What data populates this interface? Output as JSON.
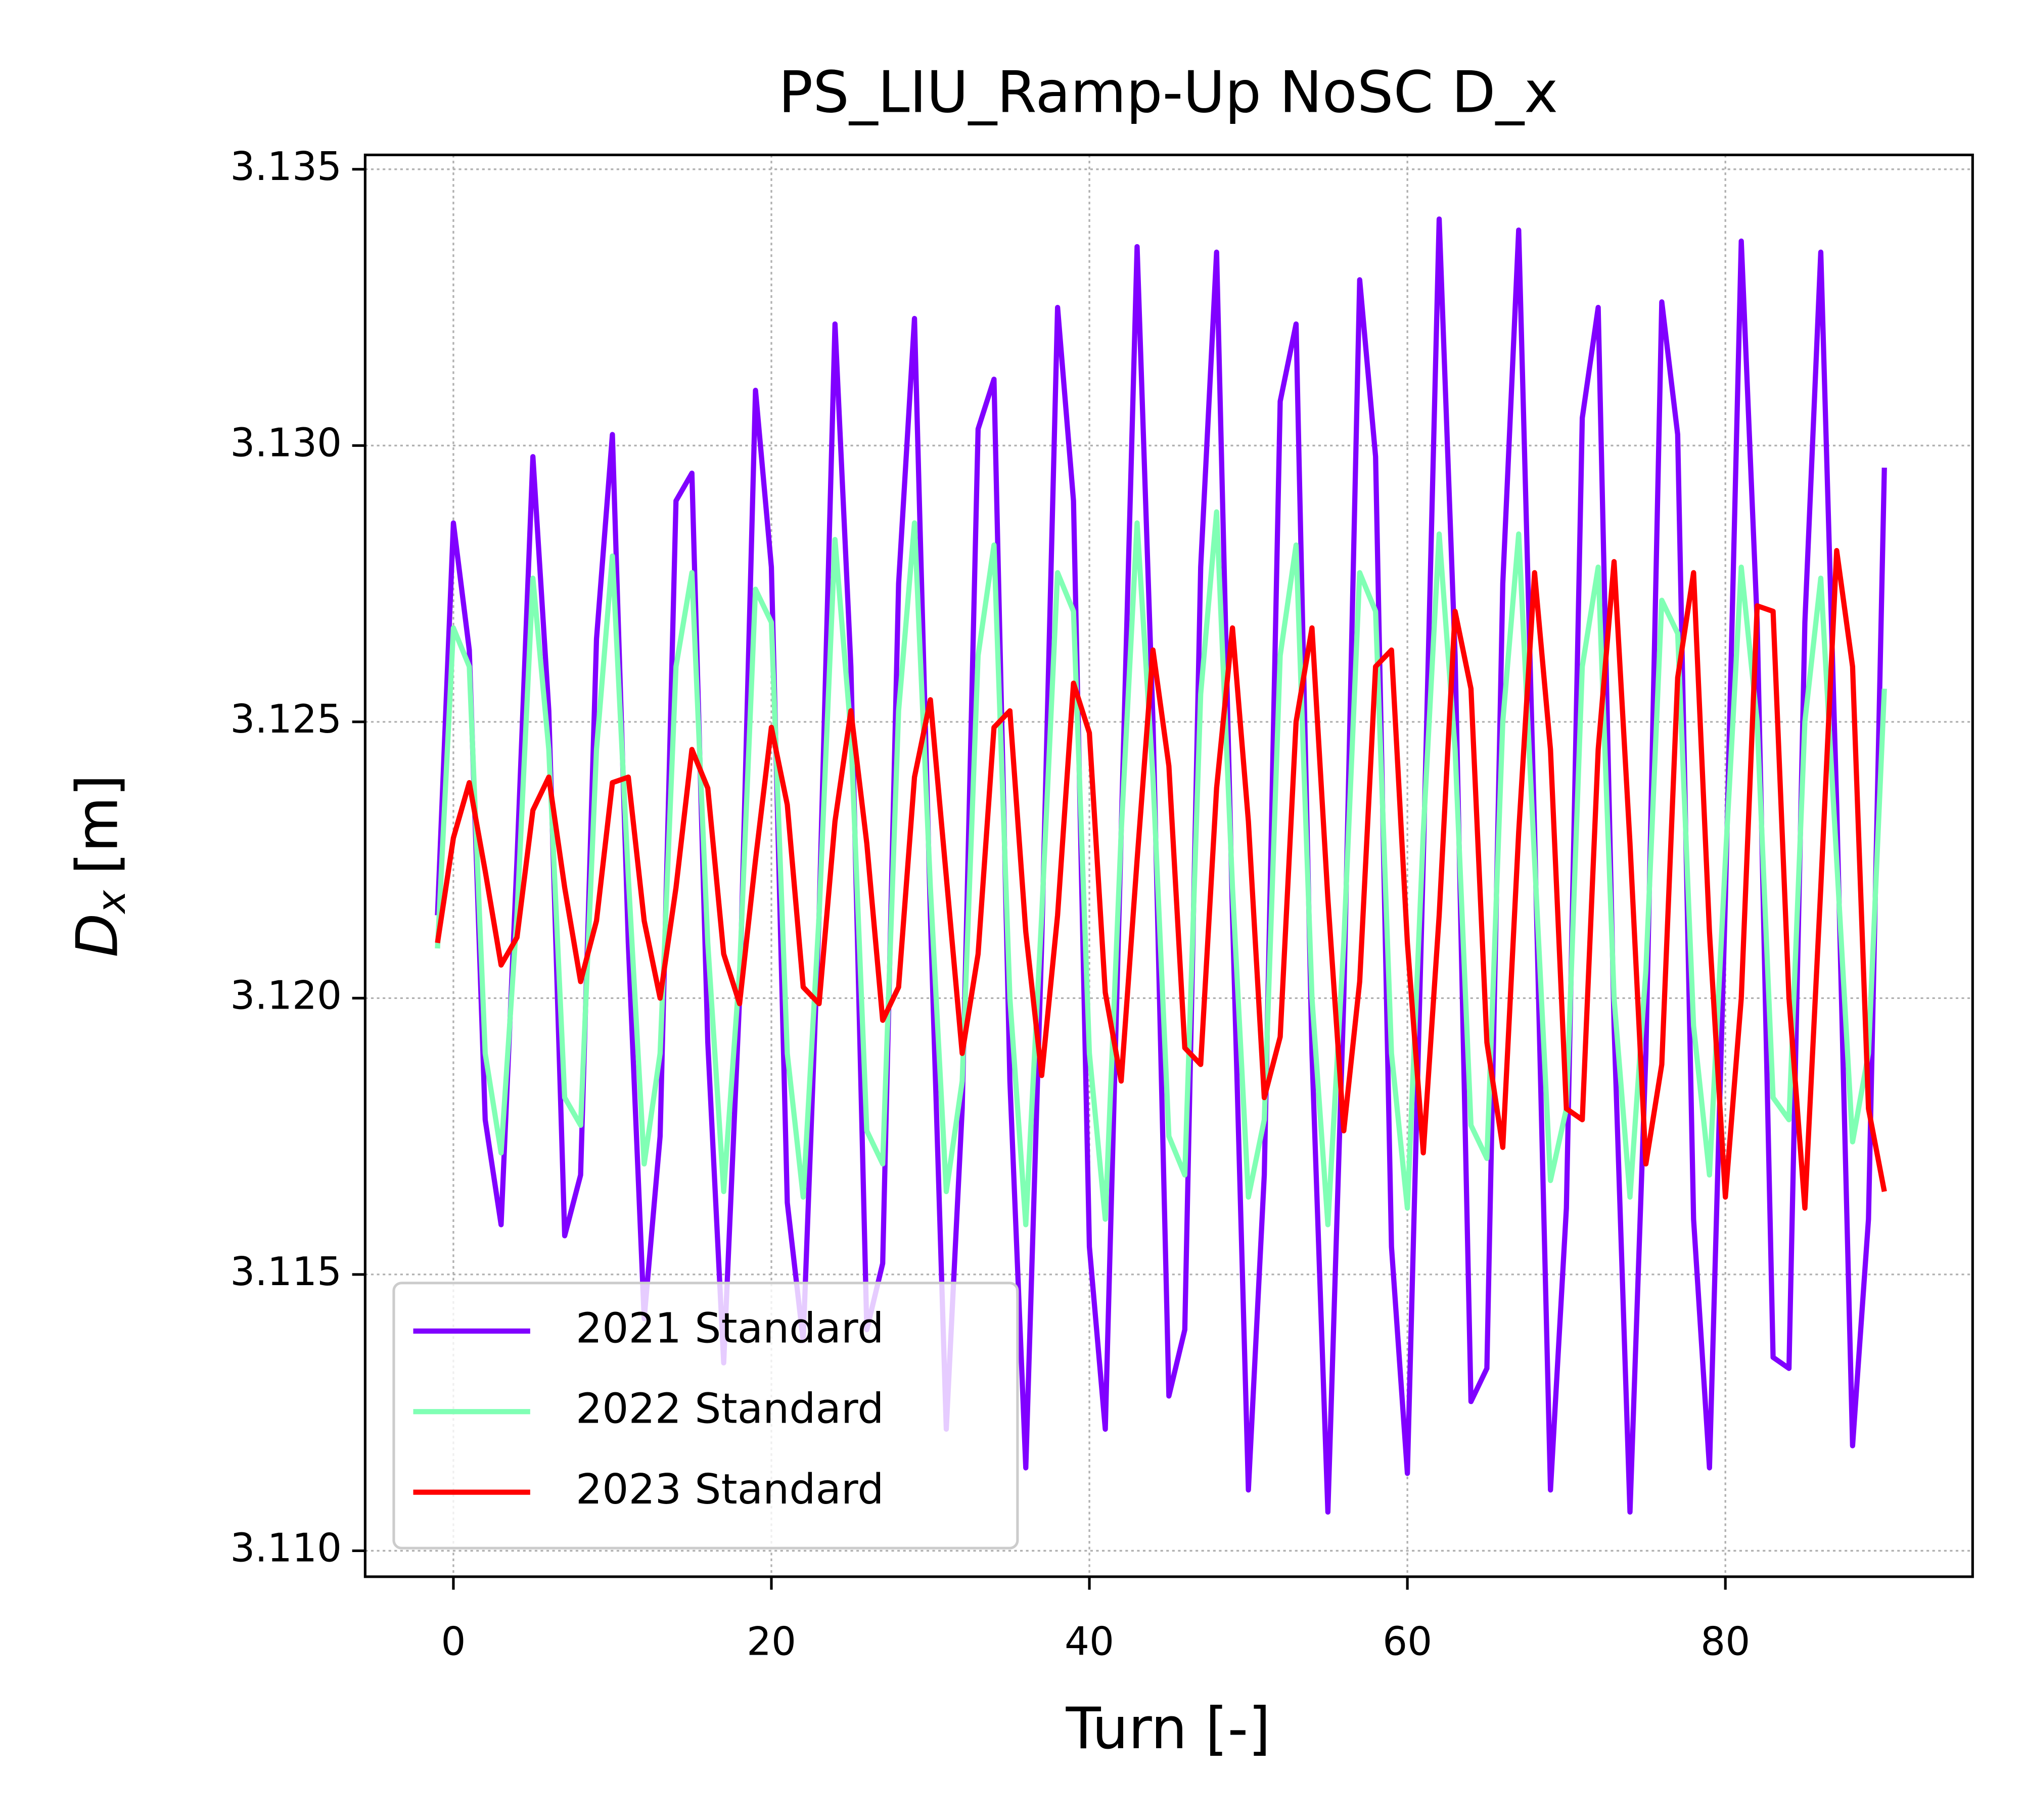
{
  "chart_data": {
    "type": "line",
    "title": "PS_LIU_Ramp-Up NoSC D_x",
    "x_label": "Turn [-]",
    "y_label": {
      "symbol": "D",
      "subscript": "x",
      "unit": "[m]"
    },
    "x": [
      -1,
      0,
      1,
      2,
      3,
      4,
      5,
      6,
      7,
      8,
      9,
      10,
      11,
      12,
      13,
      14,
      15,
      16,
      17,
      18,
      19,
      20,
      21,
      22,
      23,
      24,
      25,
      26,
      27,
      28,
      29,
      30,
      31,
      32,
      33,
      34,
      35,
      36,
      37,
      38,
      39,
      40,
      41,
      42,
      43,
      44,
      45,
      46,
      47,
      48,
      49,
      50,
      51,
      52,
      53,
      54,
      55,
      56,
      57,
      58,
      59,
      60,
      61,
      62,
      63,
      64,
      65,
      66,
      67,
      68,
      69,
      70,
      71,
      72,
      73,
      74,
      75,
      76,
      77,
      78,
      79,
      80,
      81,
      82,
      83,
      84,
      85,
      86,
      87,
      88,
      89,
      90
    ],
    "series": [
      {
        "name": "2021 Standard",
        "color": "#8000ff",
        "values": [
          3.1215,
          3.1286,
          3.1263,
          3.1178,
          3.1159,
          3.1225,
          3.1298,
          3.1252,
          3.1157,
          3.1168,
          3.1265,
          3.1302,
          3.121,
          3.1142,
          3.1175,
          3.129,
          3.1295,
          3.1192,
          3.1134,
          3.12,
          3.131,
          3.1278,
          3.1163,
          3.1138,
          3.1215,
          3.1322,
          3.126,
          3.114,
          3.1152,
          3.1275,
          3.1323,
          3.1215,
          3.1122,
          3.118,
          3.1303,
          3.1312,
          3.1185,
          3.1115,
          3.121,
          3.1325,
          3.129,
          3.1155,
          3.1122,
          3.123,
          3.1336,
          3.125,
          3.1128,
          3.114,
          3.1278,
          3.1335,
          3.1215,
          3.1111,
          3.1168,
          3.1308,
          3.1322,
          3.119,
          3.1107,
          3.12,
          3.133,
          3.1298,
          3.1155,
          3.1114,
          3.1225,
          3.1341,
          3.1262,
          3.1127,
          3.1133,
          3.1275,
          3.1339,
          3.123,
          3.1111,
          3.1162,
          3.1305,
          3.1325,
          3.1195,
          3.1107,
          3.119,
          3.1326,
          3.1302,
          3.116,
          3.1115,
          3.1218,
          3.1337,
          3.1268,
          3.1135,
          3.1133,
          3.1268,
          3.1335,
          3.1235,
          3.1119,
          3.116,
          3.1296
        ]
      },
      {
        "name": "2022 Standard",
        "color": "#80ffb4",
        "values": [
          3.1209,
          3.1267,
          3.126,
          3.119,
          3.1172,
          3.1215,
          3.1276,
          3.1245,
          3.1182,
          3.1177,
          3.1245,
          3.128,
          3.1222,
          3.117,
          3.119,
          3.126,
          3.1277,
          3.121,
          3.1165,
          3.1205,
          3.1274,
          3.1268,
          3.119,
          3.1164,
          3.1215,
          3.1283,
          3.1248,
          3.1176,
          3.117,
          3.1252,
          3.1286,
          3.122,
          3.1165,
          3.1185,
          3.1262,
          3.1282,
          3.12,
          3.1159,
          3.1215,
          3.1277,
          3.127,
          3.119,
          3.116,
          3.123,
          3.1286,
          3.124,
          3.1175,
          3.1168,
          3.1255,
          3.1288,
          3.122,
          3.1164,
          3.1178,
          3.1262,
          3.1282,
          3.12,
          3.1159,
          3.121,
          3.1277,
          3.127,
          3.119,
          3.1162,
          3.123,
          3.1284,
          3.1245,
          3.1177,
          3.1171,
          3.125,
          3.1284,
          3.1225,
          3.1167,
          3.118,
          3.126,
          3.1278,
          3.12,
          3.1164,
          3.1205,
          3.1272,
          3.1266,
          3.1195,
          3.1168,
          3.1225,
          3.1278,
          3.125,
          3.1182,
          3.1178,
          3.125,
          3.1276,
          3.1225,
          3.1174,
          3.119,
          3.1256
        ]
      },
      {
        "name": "2023 Standard",
        "color": "#ff0000",
        "values": [
          3.121,
          3.1229,
          3.1239,
          3.1223,
          3.1206,
          3.1211,
          3.1234,
          3.124,
          3.122,
          3.1203,
          3.1214,
          3.1239,
          3.124,
          3.1214,
          3.12,
          3.122,
          3.1245,
          3.1238,
          3.1208,
          3.1199,
          3.1225,
          3.1249,
          3.1235,
          3.1202,
          3.1199,
          3.1232,
          3.1252,
          3.1228,
          3.1196,
          3.1202,
          3.124,
          3.1254,
          3.1222,
          3.119,
          3.1208,
          3.1249,
          3.1252,
          3.1212,
          3.1186,
          3.1215,
          3.1257,
          3.1248,
          3.1201,
          3.1185,
          3.1225,
          3.1263,
          3.1242,
          3.1191,
          3.1188,
          3.1238,
          3.1267,
          3.1232,
          3.1182,
          3.1193,
          3.125,
          3.1267,
          3.1218,
          3.1176,
          3.1203,
          3.126,
          3.1263,
          3.121,
          3.1172,
          3.1215,
          3.127,
          3.1256,
          3.1192,
          3.1173,
          3.123,
          3.1277,
          3.1245,
          3.118,
          3.1178,
          3.1245,
          3.1279,
          3.1228,
          3.117,
          3.1188,
          3.1258,
          3.1277,
          3.1212,
          3.1164,
          3.12,
          3.1271,
          3.127,
          3.12,
          3.1162,
          3.122,
          3.1281,
          3.126,
          3.118,
          3.1165
        ]
      }
    ],
    "xlim": [
      -5.55,
      95.55
    ],
    "ylim": [
      3.10953,
      3.13526
    ],
    "xticks": [
      0,
      20,
      40,
      60,
      80
    ],
    "yticks": [
      {
        "value": 3.11,
        "label": "3.110"
      },
      3.115,
      {
        "value": 3.12,
        "label": "3.120"
      },
      3.125,
      {
        "value": 3.13,
        "label": "3.130"
      },
      3.135
    ],
    "grid": true,
    "legend": "lower left"
  }
}
